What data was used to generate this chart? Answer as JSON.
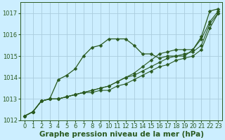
{
  "xlabel": "Graphe pression niveau de la mer (hPa)",
  "xlim": [
    -0.5,
    23.5
  ],
  "ylim": [
    1012,
    1017.5
  ],
  "yticks": [
    1012,
    1013,
    1014,
    1015,
    1016,
    1017
  ],
  "xticks": [
    0,
    1,
    2,
    3,
    4,
    5,
    6,
    7,
    8,
    9,
    10,
    11,
    12,
    13,
    14,
    15,
    16,
    17,
    18,
    19,
    20,
    21,
    22,
    23
  ],
  "bg_color": "#cceeff",
  "grid_color": "#aaccdd",
  "line_color": "#2a5a20",
  "series": [
    [
      1012.2,
      1012.4,
      1012.9,
      1013.0,
      1013.9,
      1014.1,
      1014.4,
      1015.0,
      1015.4,
      1015.5,
      1015.8,
      1015.8,
      1015.8,
      1015.5,
      1015.1,
      1015.1,
      1014.9,
      1015.0,
      1015.0,
      1015.0,
      1015.3,
      1015.9,
      1017.1,
      1017.2
    ],
    [
      1012.2,
      1012.4,
      1012.9,
      1013.0,
      1013.0,
      1013.1,
      1013.2,
      1013.3,
      1013.4,
      1013.5,
      1013.6,
      1013.8,
      1014.0,
      1014.2,
      1014.5,
      1014.8,
      1015.1,
      1015.2,
      1015.3,
      1015.3,
      1015.3,
      1015.8,
      1016.6,
      1017.1
    ],
    [
      1012.2,
      1012.4,
      1012.9,
      1013.0,
      1013.0,
      1013.1,
      1013.2,
      1013.3,
      1013.4,
      1013.5,
      1013.6,
      1013.8,
      1014.0,
      1014.1,
      1014.3,
      1014.5,
      1014.7,
      1014.9,
      1015.0,
      1015.1,
      1015.2,
      1015.5,
      1016.5,
      1017.0
    ],
    [
      1012.2,
      1012.4,
      1012.9,
      1013.0,
      1013.0,
      1013.1,
      1013.2,
      1013.3,
      1013.3,
      1013.4,
      1013.4,
      1013.6,
      1013.7,
      1013.9,
      1014.1,
      1014.3,
      1014.5,
      1014.6,
      1014.8,
      1014.9,
      1015.0,
      1015.3,
      1016.3,
      1017.0
    ]
  ],
  "title_fontsize": 7.5,
  "tick_fontsize": 6,
  "markersize": 2.5
}
